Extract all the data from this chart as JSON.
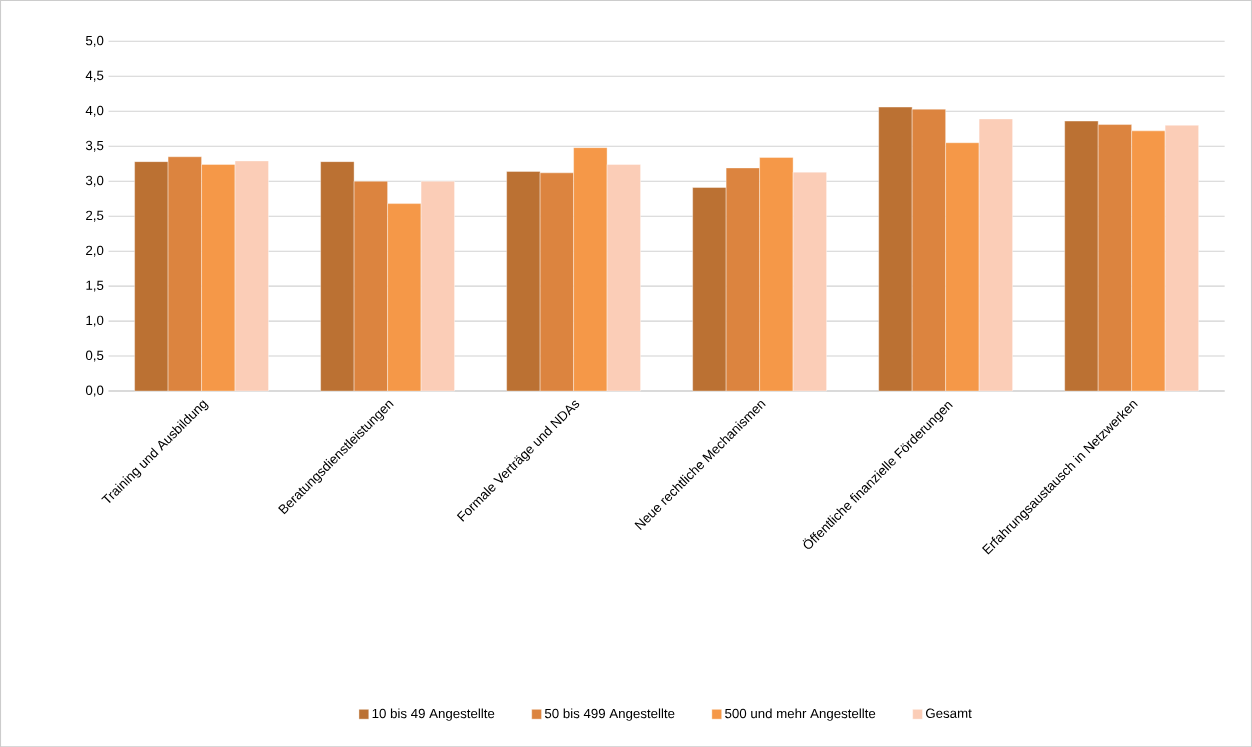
{
  "chart_data": {
    "type": "bar",
    "categories": [
      "Training und Ausbildung",
      "Beratungsdienstleistungen",
      "Formale Verträge und NDAs",
      "Neue rechtliche Mechanismen",
      "Öffentliche finanzielle Förderungen",
      "Erfahrungsaustausch in Netzwerken"
    ],
    "series": [
      {
        "name": "10 bis 49 Angestellte",
        "color": "#bb7133",
        "values": [
          3.28,
          3.28,
          3.14,
          2.91,
          4.06,
          3.86
        ]
      },
      {
        "name": "50 bis 499 Angestellte",
        "color": "#dc843f",
        "values": [
          3.35,
          3.0,
          3.12,
          3.19,
          4.03,
          3.81
        ]
      },
      {
        "name": "500 und mehr Angestellte",
        "color": "#f59848",
        "values": [
          3.24,
          2.68,
          3.48,
          3.34,
          3.55,
          3.72
        ]
      },
      {
        "name": "Gesamt",
        "color": "#fbcdb7",
        "values": [
          3.29,
          3.0,
          3.24,
          3.13,
          3.89,
          3.8
        ]
      }
    ],
    "ylim": [
      0,
      5
    ],
    "yticks": [
      {
        "value": 0,
        "label": "0,0"
      },
      {
        "value": 0.5,
        "label": "0,5"
      },
      {
        "value": 1,
        "label": "1,0"
      },
      {
        "value": 1.5,
        "label": "1,5"
      },
      {
        "value": 2,
        "label": "2,0"
      },
      {
        "value": 2.5,
        "label": "2,5"
      },
      {
        "value": 3,
        "label": "3,0"
      },
      {
        "value": 3.5,
        "label": "3,5"
      },
      {
        "value": 4,
        "label": "4,0"
      },
      {
        "value": 4.5,
        "label": "4,5"
      },
      {
        "value": 5,
        "label": "5,0"
      }
    ],
    "grid": "y",
    "legend": "bottom"
  }
}
